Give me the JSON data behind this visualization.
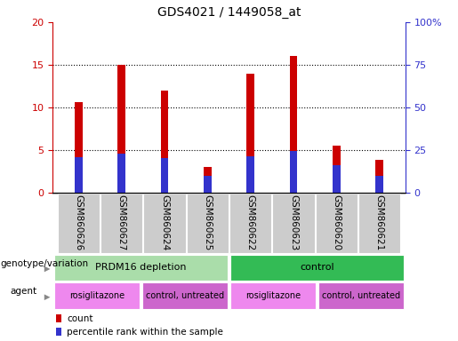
{
  "title": "GDS4021 / 1449058_at",
  "samples": [
    "GSM860626",
    "GSM860627",
    "GSM860624",
    "GSM860625",
    "GSM860622",
    "GSM860623",
    "GSM860620",
    "GSM860621"
  ],
  "count_values": [
    10.6,
    15.0,
    12.0,
    3.0,
    14.0,
    16.0,
    5.5,
    3.9
  ],
  "percentile_values": [
    21,
    23,
    20.5,
    10,
    21.5,
    24.5,
    16,
    10
  ],
  "ylim_left": [
    0,
    20
  ],
  "ylim_right": [
    0,
    100
  ],
  "yticks_left": [
    0,
    5,
    10,
    15,
    20
  ],
  "yticks_right": [
    0,
    25,
    50,
    75,
    100
  ],
  "ytick_labels_right": [
    "0",
    "25",
    "50",
    "75",
    "100%"
  ],
  "bar_color_red": "#CC0000",
  "bar_color_blue": "#3333CC",
  "bar_width": 0.18,
  "background_color": "#ffffff",
  "plot_bg_color": "#ffffff",
  "tick_label_bg": "#cccccc",
  "genotype_groups": [
    {
      "label": "PRDM16 depletion",
      "samples": [
        0,
        1,
        2,
        3
      ],
      "color": "#aaddaa"
    },
    {
      "label": "control",
      "samples": [
        4,
        5,
        6,
        7
      ],
      "color": "#33bb55"
    }
  ],
  "agent_groups": [
    {
      "label": "rosiglitazone",
      "samples": [
        0,
        1
      ],
      "color": "#ee88ee"
    },
    {
      "label": "control, untreated",
      "samples": [
        2,
        3
      ],
      "color": "#cc66cc"
    },
    {
      "label": "rosiglitazone",
      "samples": [
        4,
        5
      ],
      "color": "#ee88ee"
    },
    {
      "label": "control, untreated",
      "samples": [
        6,
        7
      ],
      "color": "#cc66cc"
    }
  ],
  "legend_count_label": "count",
  "legend_pct_label": "percentile rank within the sample",
  "left_label_geno": "genotype/variation",
  "left_label_agent": "agent",
  "arrow_color": "#888888"
}
